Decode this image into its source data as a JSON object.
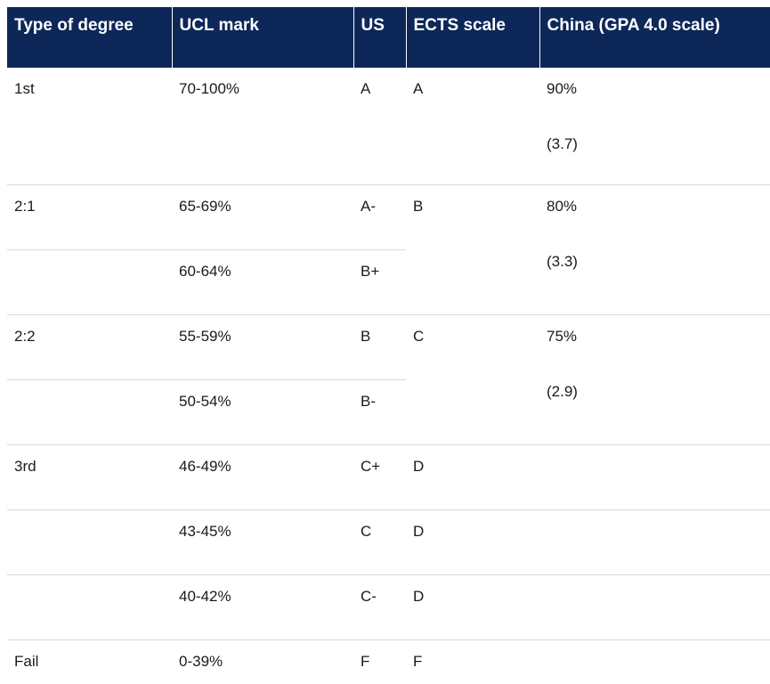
{
  "headers": [
    "Type of degree",
    "UCL mark",
    "US",
    "ECTS scale",
    "China (GPA 4.0 scale)"
  ],
  "rows": [
    {
      "degree": "1st",
      "ucl": "70-100%",
      "us": "A",
      "ects": "A",
      "china_pct": "90%",
      "china_gpa": "(3.7)"
    },
    {
      "degree": "2:1",
      "ucl": "65-69%",
      "us": "A-",
      "ects": "B",
      "china_pct": "80%",
      "china_gpa": "(3.3)"
    },
    {
      "degree": "",
      "ucl": "60-64%",
      "us": "B+"
    },
    {
      "degree": "2:2",
      "ucl": "55-59%",
      "us": "B",
      "ects": "C",
      "china_pct": "75%",
      "china_gpa": "(2.9)"
    },
    {
      "degree": "",
      "ucl": "50-54%",
      "us": "B-"
    },
    {
      "degree": "3rd",
      "ucl": "46-49%",
      "us": "C+",
      "ects": "D",
      "china_pct": ""
    },
    {
      "degree": "",
      "ucl": "43-45%",
      "us": "C",
      "ects": "D",
      "china_pct": ""
    },
    {
      "degree": "",
      "ucl": "40-42%",
      "us": "C-",
      "ects": "D",
      "china_pct": ""
    },
    {
      "degree": "Fail",
      "ucl": "0-39%",
      "us": "F",
      "ects": "F",
      "china_pct": ""
    }
  ]
}
